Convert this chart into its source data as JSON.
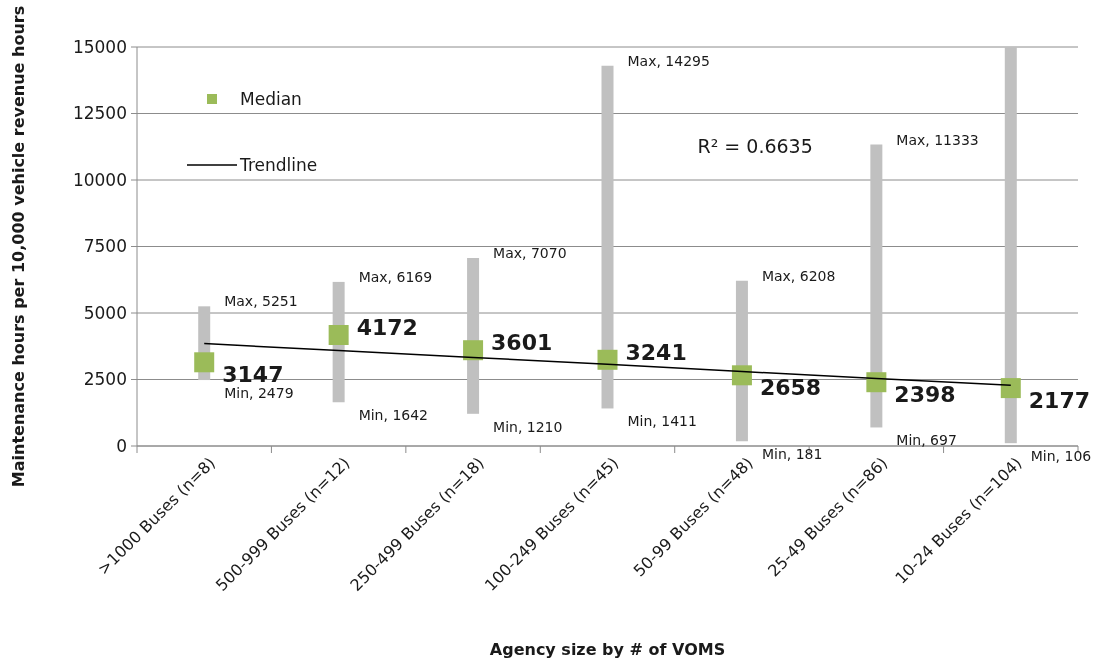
{
  "chart_data": {
    "type": "scatter",
    "xlabel": "Agency size by # of VOMS",
    "ylabel": "Maintenance hours per 10,000 vehicle revenue hours",
    "categories": [
      ">1000 Buses (n=8)",
      "500-999 Buses (n=12)",
      "250-499 Buses (n=18)",
      "100-249 Buses (n=45)",
      "50-99 Buses (n=48)",
      "25-49 Buses (n=86)",
      "10-24 Buses (n=104)"
    ],
    "series": [
      {
        "name": "Median",
        "color": "#9bbb59",
        "marker": "square",
        "values": [
          3147,
          4172,
          3601,
          3241,
          2658,
          2398,
          2177
        ],
        "value_labels": [
          "3147",
          "4172",
          "3601",
          "3241",
          "2658",
          "2398",
          "2177"
        ],
        "errors": [
          [
            2479,
            5251
          ],
          [
            1642,
            6169
          ],
          [
            1210,
            7070
          ],
          [
            1411,
            14295
          ],
          [
            181,
            6208
          ],
          [
            697,
            11333
          ],
          [
            106,
            15000
          ]
        ]
      },
      {
        "type": "line",
        "name": "Trendline",
        "color": "#000000",
        "values": [
          3850,
          3590,
          3330,
          3070,
          2800,
          2540,
          2280
        ]
      }
    ],
    "annotations": [
      {
        "text": "Max, 5251",
        "x": ">1000 Buses (n=8)",
        "y": 5251
      },
      {
        "text": "Min, 2479",
        "x": ">1000 Buses (n=8)",
        "y": 2479
      },
      {
        "text": "Max, 6169",
        "x": "500-999 Buses (n=12)",
        "y": 6169
      },
      {
        "text": "Min, 1642",
        "x": "500-999 Buses (n=12)",
        "y": 1642
      },
      {
        "text": "Max, 7070",
        "x": "250-499 Buses (n=18)",
        "y": 7070
      },
      {
        "text": "Min, 1210",
        "x": "250-499 Buses (n=18)",
        "y": 1210
      },
      {
        "text": "Max, 14295",
        "x": "100-249 Buses (n=45)",
        "y": 14295
      },
      {
        "text": "Min, 1411",
        "x": "100-249 Buses (n=45)",
        "y": 1411
      },
      {
        "text": "Max, 6208",
        "x": "50-99 Buses (n=48)",
        "y": 6208
      },
      {
        "text": "Min, 181",
        "x": "50-99 Buses (n=48)",
        "y": 181
      },
      {
        "text": "Max, 11333",
        "x": "25-49 Buses (n=86)",
        "y": 11333
      },
      {
        "text": "Min, 697",
        "x": "25-49 Buses (n=86)",
        "y": 697
      },
      {
        "text": "Min, 106",
        "x": "10-24 Buses (n=104)",
        "y": 106
      },
      "R² = 0.6635"
    ],
    "ylim": [
      0,
      15000
    ],
    "yticks": [
      0,
      2500,
      5000,
      7500,
      10000,
      12500,
      15000
    ],
    "grid": "y",
    "legend": "top left"
  }
}
